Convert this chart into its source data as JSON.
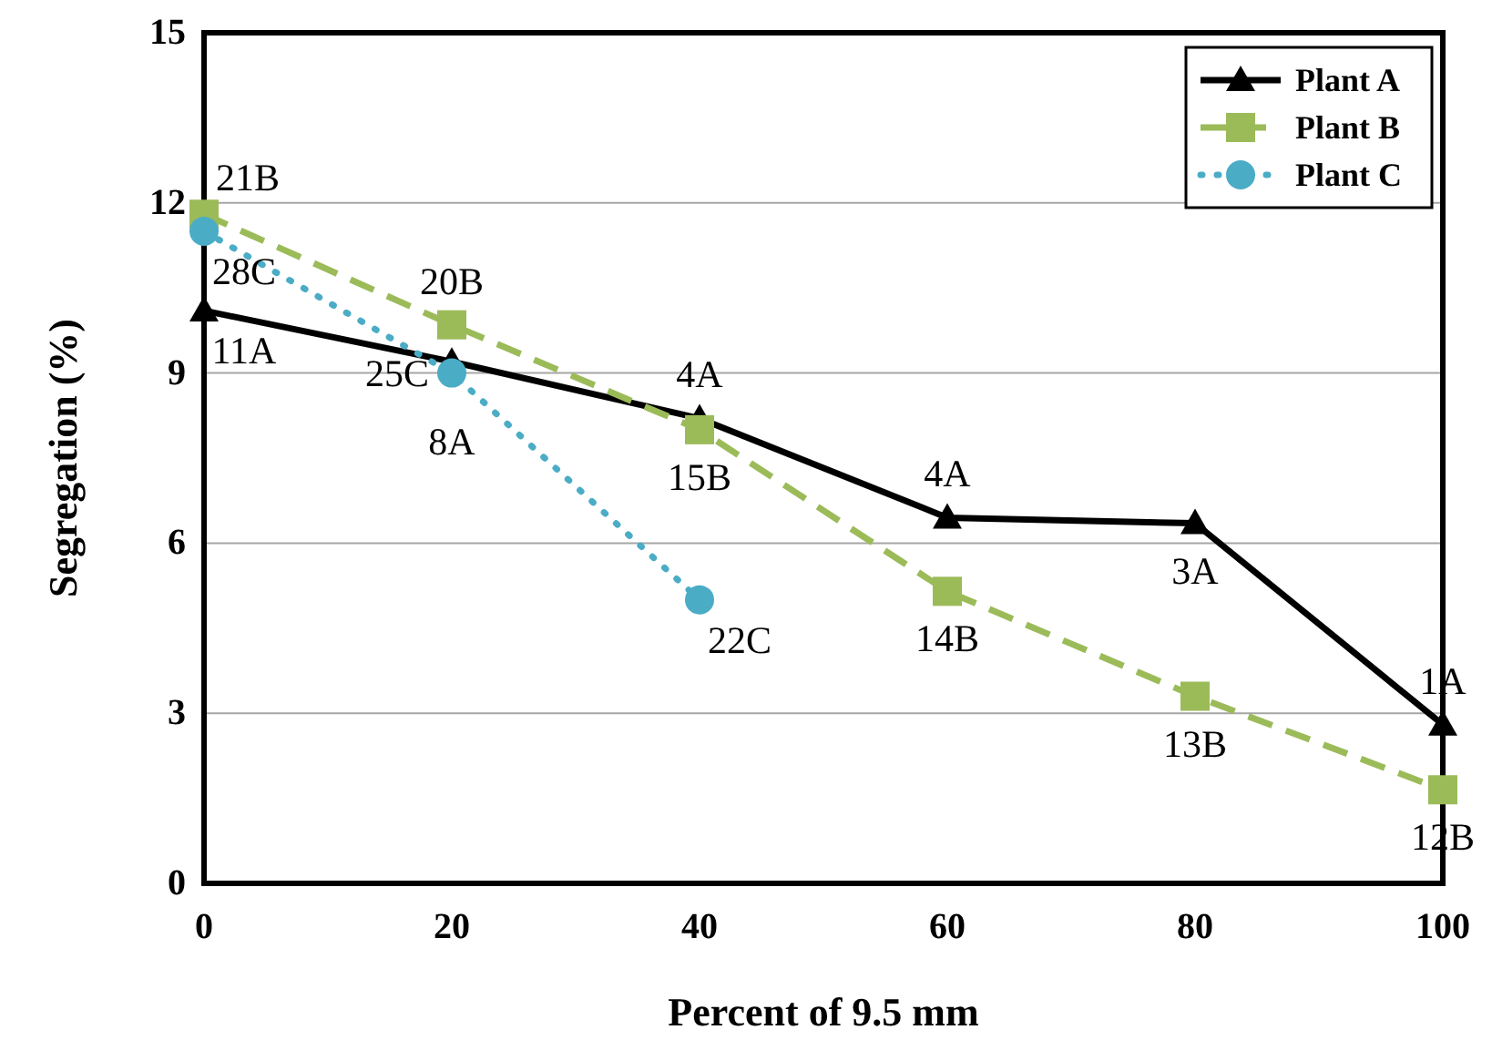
{
  "chart_data": {
    "type": "line",
    "xlabel": "Percent of 9.5 mm",
    "ylabel": "Segregation (%)",
    "xlim": [
      0,
      100
    ],
    "xticks": [
      0,
      20,
      40,
      60,
      80,
      100
    ],
    "ylim": [
      0,
      15
    ],
    "yticks": [
      0,
      3,
      6,
      9,
      12,
      15
    ],
    "grid": "y",
    "legend": "top right",
    "series": [
      {
        "name": "Plant A",
        "color": "#000000",
        "marker": "triangle",
        "line_style": "solid",
        "x": [
          0,
          20,
          40,
          60,
          80,
          100
        ],
        "values": [
          10.1,
          9.2,
          8.2,
          6.45,
          6.35,
          2.8
        ]
      },
      {
        "name": "Plant B",
        "color": "#9bbb59",
        "marker": "square",
        "line_style": "dashed",
        "x": [
          0,
          20,
          40,
          60,
          80,
          100
        ],
        "values": [
          11.8,
          9.85,
          8.0,
          5.15,
          3.3,
          1.65
        ]
      },
      {
        "name": "Plant C",
        "color": "#4bacc6",
        "marker": "circle",
        "line_style": "dotted",
        "x": [
          0,
          20,
          40
        ],
        "values": [
          11.5,
          9.0,
          5.0
        ]
      }
    ],
    "annotations": [
      {
        "text": "21B",
        "x": 0,
        "y": 11.8
      },
      {
        "text": "28C",
        "x": 0,
        "y": 11.5
      },
      {
        "text": "11A",
        "x": 0,
        "y": 10.1
      },
      {
        "text": "20B",
        "x": 20,
        "y": 9.85
      },
      {
        "text": "8A",
        "x": 20,
        "y": 9.2
      },
      {
        "text": "25C",
        "x": 20,
        "y": 9.0
      },
      {
        "text": "4A",
        "x": 40,
        "y": 8.2
      },
      {
        "text": "15B",
        "x": 40,
        "y": 8.0
      },
      {
        "text": "22C",
        "x": 40,
        "y": 5.0
      },
      {
        "text": "4A",
        "x": 60,
        "y": 6.45
      },
      {
        "text": "14B",
        "x": 60,
        "y": 5.15
      },
      {
        "text": "3A",
        "x": 80,
        "y": 6.35
      },
      {
        "text": "13B",
        "x": 80,
        "y": 3.3
      },
      {
        "text": "1A",
        "x": 100,
        "y": 2.8
      },
      {
        "text": "12B",
        "x": 100,
        "y": 1.65
      }
    ]
  }
}
